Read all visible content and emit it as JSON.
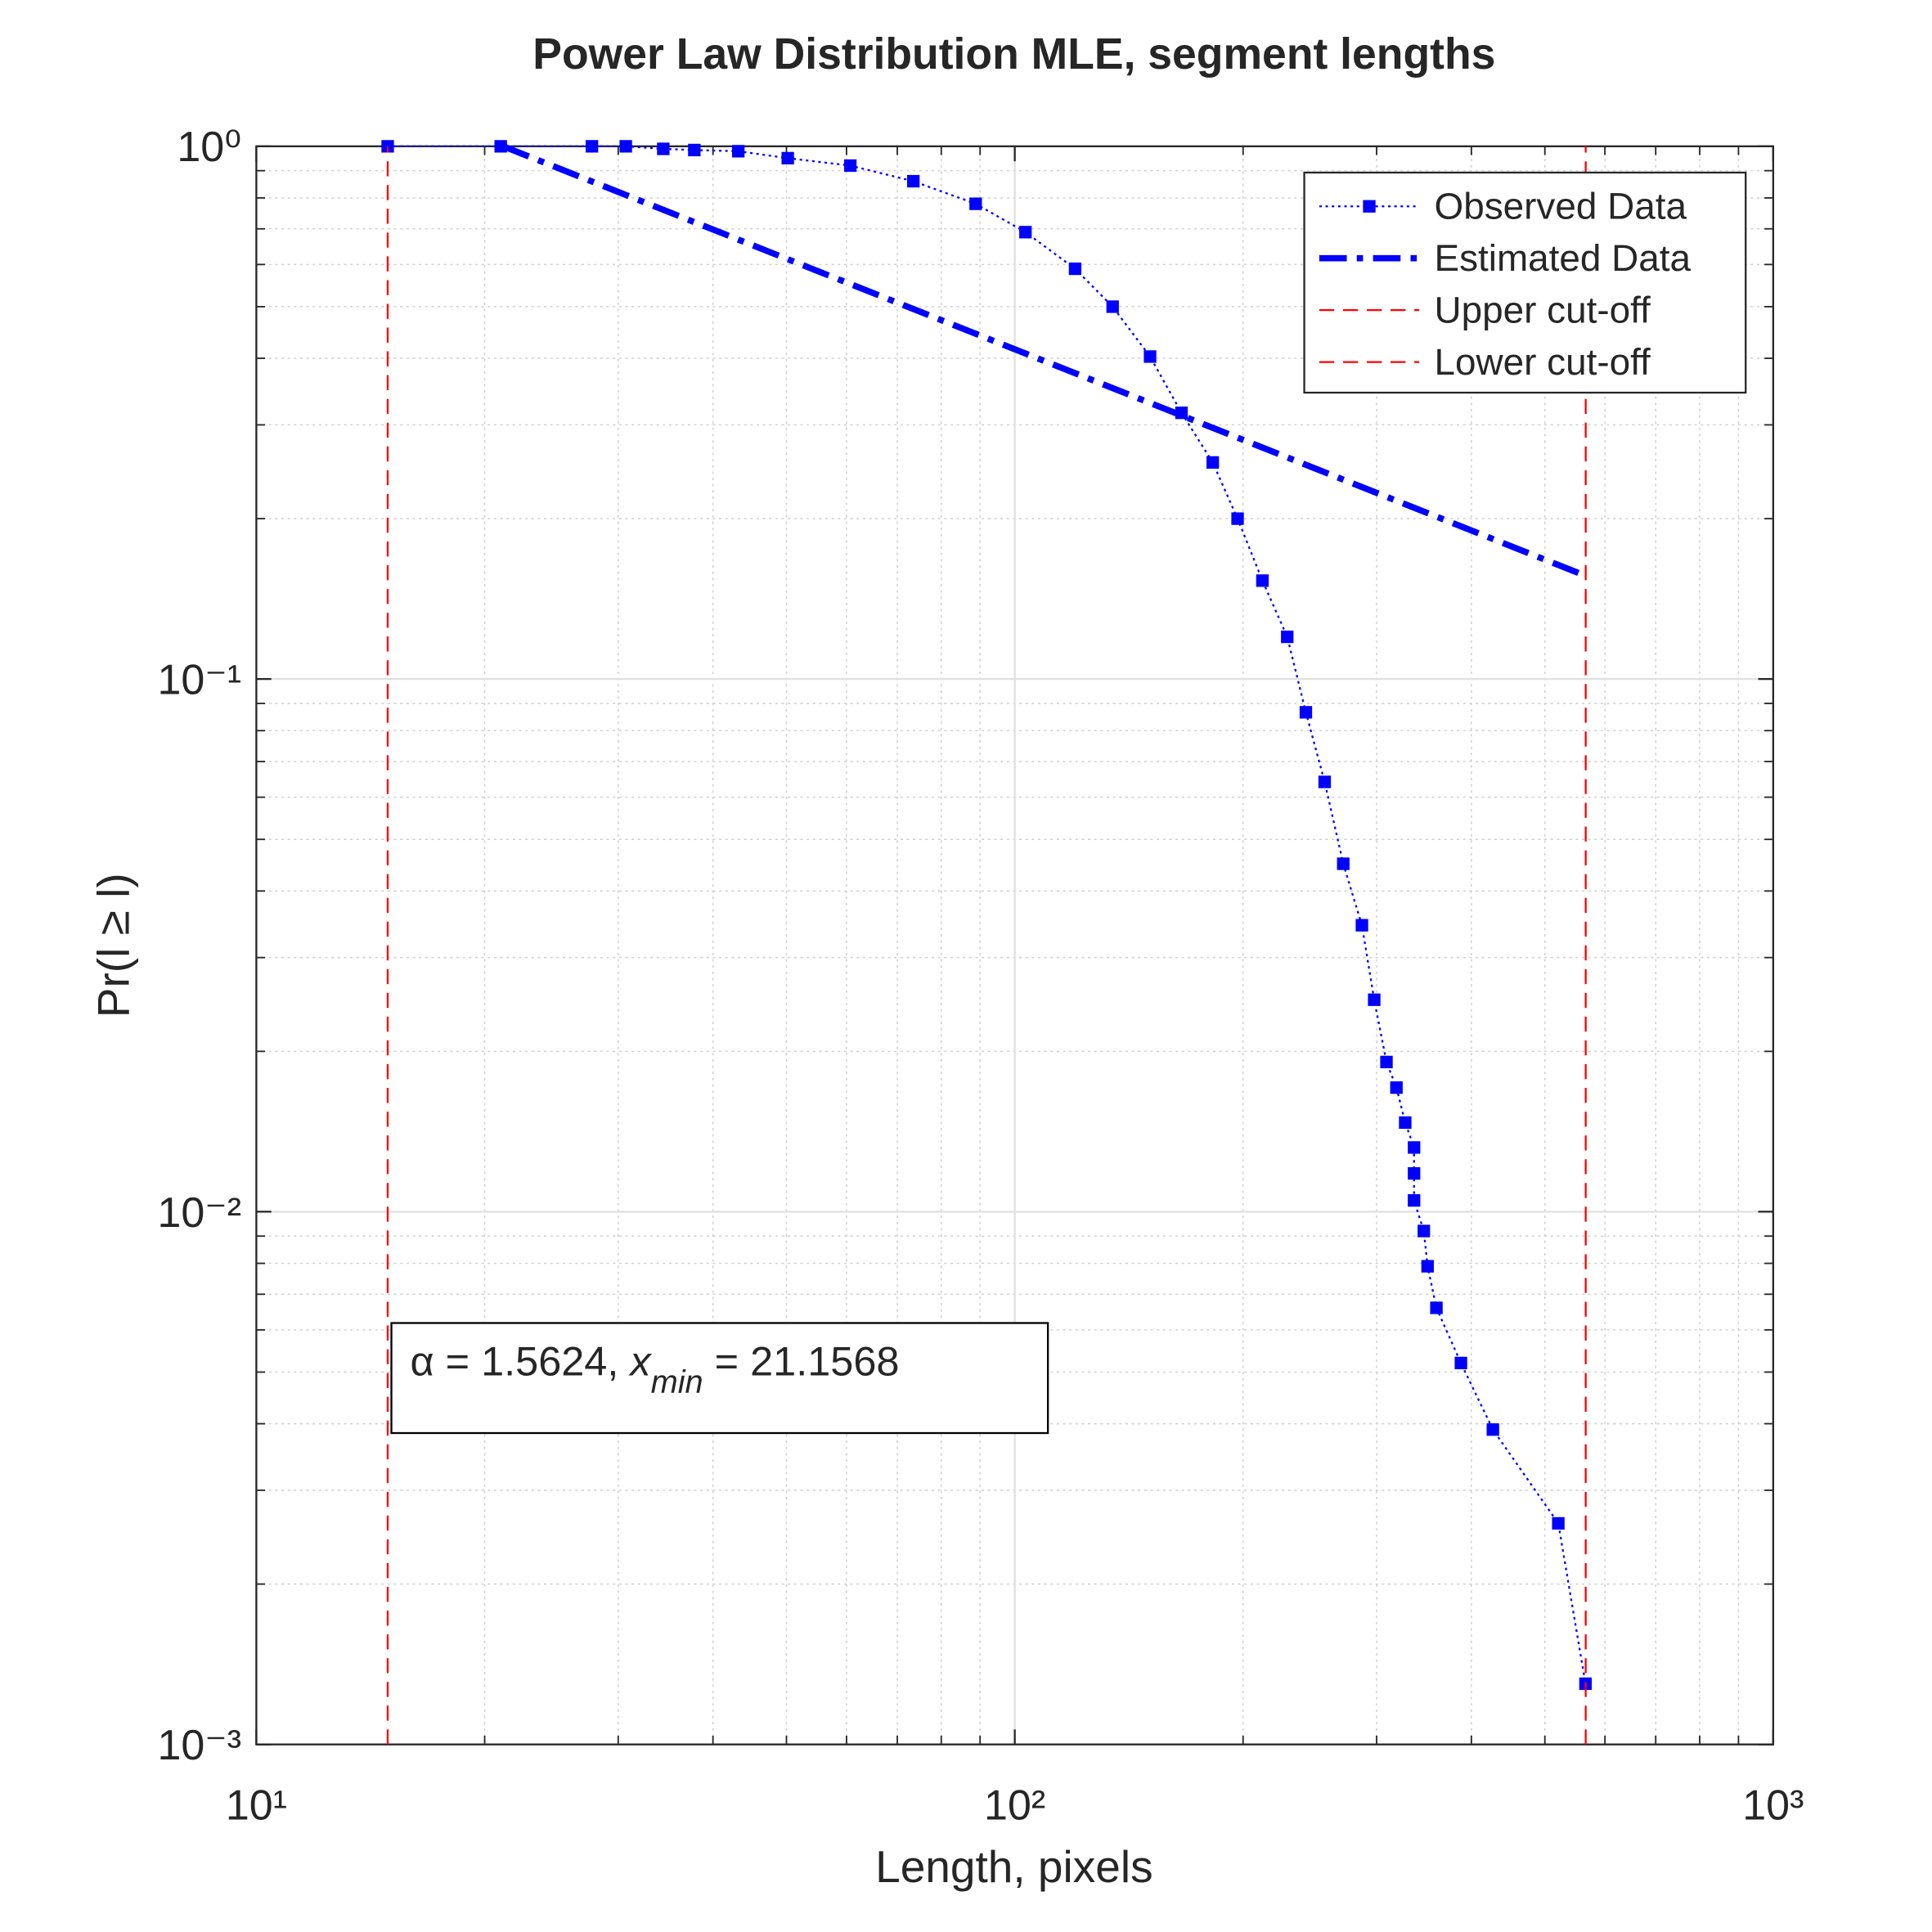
{
  "chart_data": {
    "type": "line",
    "title": "Power Law Distribution MLE, segment lengths",
    "xlabel": "Length, pixels",
    "ylabel": "Pr(l ≥ l)",
    "xscale": "log",
    "yscale": "log",
    "xlim": [
      10,
      1000
    ],
    "ylim": [
      0.001,
      1
    ],
    "xticks": [
      {
        "value": 10,
        "label": "10¹"
      },
      {
        "value": 100,
        "label": "10²"
      },
      {
        "value": 1000,
        "label": "10³"
      }
    ],
    "yticks": [
      {
        "value": 0.001,
        "label": "10⁻³"
      },
      {
        "value": 0.01,
        "label": "10⁻²"
      },
      {
        "value": 0.1,
        "label": "10⁻¹"
      },
      {
        "value": 1,
        "label": "10⁰"
      }
    ],
    "grid": true,
    "minor_grid": true,
    "legend": "upper right",
    "annotation": [
      "α = 1.5624, ",
      "x",
      "min",
      " = 21.1568"
    ],
    "series": [
      {
        "name": "Observed Data",
        "color": "#0000ff",
        "linestyle": "dotted",
        "linewidth": 1.5,
        "marker": "square",
        "x": [
          14.9,
          21.0,
          27.7,
          30.7,
          34.4,
          37.8,
          43.2,
          50.2,
          60.7,
          73.5,
          88.8,
          103.3,
          120.1,
          134.6,
          150.8,
          165.9,
          182.4,
          196.7,
          212.1,
          228.7,
          242.0,
          256.2,
          271.1,
          286.9,
          297.8,
          309.1,
          318.6,
          327.2,
          336.1,
          336.1,
          336.1,
          346.2,
          350.2,
          359.7,
          387.5,
          427.0,
          520.8,
          565.6
        ],
        "values": [
          1,
          1,
          1,
          1,
          0.989,
          0.984,
          0.979,
          0.95,
          0.92,
          0.86,
          0.78,
          0.69,
          0.589,
          0.5,
          0.403,
          0.316,
          0.255,
          0.2,
          0.153,
          0.12,
          0.0866,
          0.0641,
          0.045,
          0.0345,
          0.025,
          0.0191,
          0.0171,
          0.0147,
          0.0132,
          0.0118,
          0.0105,
          0.0092,
          0.0079,
          0.0066,
          0.0052,
          0.0039,
          0.0026,
          0.0013
        ]
      },
      {
        "name": "Estimated Data",
        "color": "#0000ff",
        "linestyle": "dashdot",
        "linewidth": 5,
        "marker": "none",
        "x": [
          21.16,
          561
        ],
        "values": [
          1,
          0.157
        ]
      },
      {
        "name": "Upper cut-off",
        "color": "#ff0000",
        "linestyle": "dashed",
        "linewidth": 1.5,
        "marker": "none",
        "x": [
          566,
          566
        ],
        "values": [
          0.001,
          1
        ]
      },
      {
        "name": "Lower cut-off",
        "color": "#ff0000",
        "linestyle": "dashed",
        "linewidth": 1.5,
        "marker": "none",
        "x": [
          14.9,
          14.9
        ],
        "values": [
          0.001,
          1
        ]
      }
    ]
  }
}
